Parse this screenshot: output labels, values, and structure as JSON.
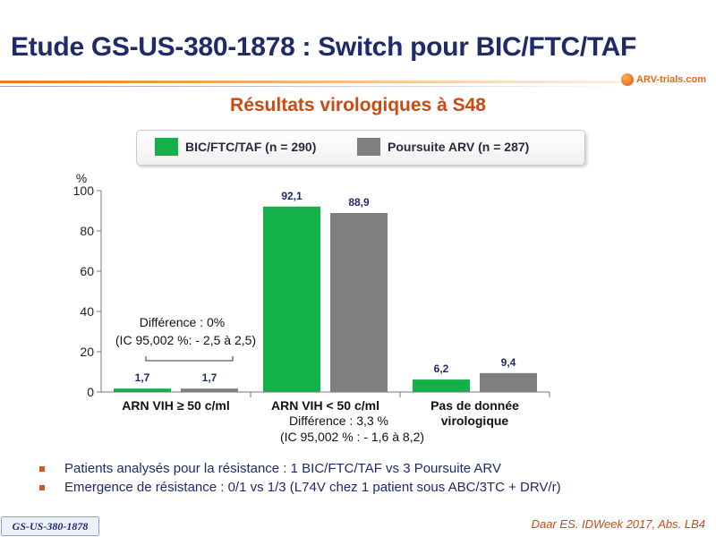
{
  "slide": {
    "title": "Etude GS-US-380-1878 : Switch pour BIC/FTC/TAF",
    "subtitle": "Résultats virologiques à S48",
    "logo_text": "ARV-trials.com",
    "study_tag": "GS-US-380-1878",
    "reference": "Daar ES. IDWeek 2017, Abs. LB4",
    "bullets": [
      "Patients analysés pour la résistance : 1 BIC/FTC/TAF  vs 3 Poursuite ARV",
      "Emergence de résistance : 0/1 vs 1/3 (L74V chez 1 patient sous ABC/3TC  + DRV/r)"
    ]
  },
  "colors": {
    "title": "#1f2a6b",
    "subtitle": "#c94a12",
    "series1": "#14b14b",
    "series2": "#7f7f7f",
    "value_label": "#1f2a6b"
  },
  "chart_data": {
    "type": "bar",
    "ylabel": "%",
    "ylim": [
      0,
      100
    ],
    "yticks": [
      0,
      20,
      40,
      60,
      80,
      100
    ],
    "grid": false,
    "legend_position": "top",
    "categories": [
      "ARN VIH ≥ 50 c/ml",
      "ARN VIH < 50 c/ml",
      "Pas de donnée virologique"
    ],
    "series": [
      {
        "name": "BIC/FTC/TAF (n = 290)",
        "values": [
          1.7,
          92.1,
          6.2
        ],
        "labels": [
          "1,7",
          "92,1",
          "6,2"
        ]
      },
      {
        "name": "Poursuite ARV (n = 287)",
        "values": [
          1.7,
          88.9,
          9.4
        ],
        "labels": [
          "1,7",
          "88,9",
          "9,4"
        ]
      }
    ],
    "annotations": [
      {
        "lines": [
          "Différence : 0%",
          "(IC 95,002 %: - 2,5 à 2,5)"
        ]
      },
      {
        "lines": [
          "Différence : 3,3 %",
          "(IC 95,002 % : - 1,6 à 8,2)"
        ]
      }
    ]
  }
}
